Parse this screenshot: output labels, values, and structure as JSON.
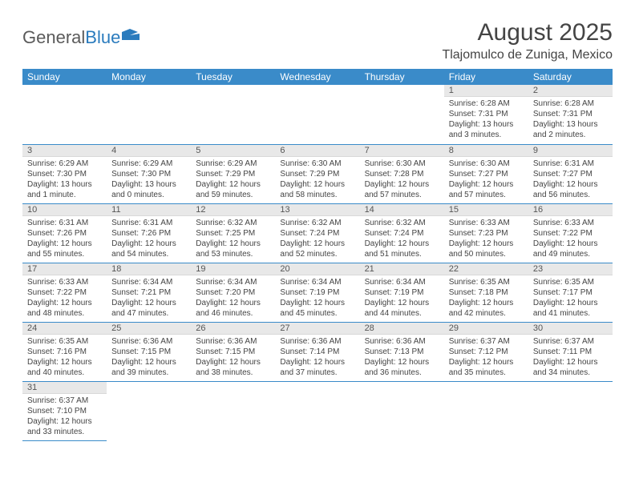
{
  "logo": {
    "text_gray": "General",
    "text_blue": "Blue"
  },
  "title": "August 2025",
  "location": "Tlajomulco de Zuniga, Mexico",
  "day_headers": [
    "Sunday",
    "Monday",
    "Tuesday",
    "Wednesday",
    "Thursday",
    "Friday",
    "Saturday"
  ],
  "colors": {
    "header_bg": "#3a8bc9",
    "header_text": "#ffffff",
    "daynum_bg": "#e8e8e8",
    "row_divider": "#3a8bc9",
    "text": "#444444",
    "logo_gray": "#5a5a5a",
    "logo_blue": "#2a7bbd"
  },
  "weeks": [
    [
      null,
      null,
      null,
      null,
      null,
      {
        "n": "1",
        "sunrise": "6:28 AM",
        "sunset": "7:31 PM",
        "daylight": "13 hours and 3 minutes."
      },
      {
        "n": "2",
        "sunrise": "6:28 AM",
        "sunset": "7:31 PM",
        "daylight": "13 hours and 2 minutes."
      }
    ],
    [
      {
        "n": "3",
        "sunrise": "6:29 AM",
        "sunset": "7:30 PM",
        "daylight": "13 hours and 1 minute."
      },
      {
        "n": "4",
        "sunrise": "6:29 AM",
        "sunset": "7:30 PM",
        "daylight": "13 hours and 0 minutes."
      },
      {
        "n": "5",
        "sunrise": "6:29 AM",
        "sunset": "7:29 PM",
        "daylight": "12 hours and 59 minutes."
      },
      {
        "n": "6",
        "sunrise": "6:30 AM",
        "sunset": "7:29 PM",
        "daylight": "12 hours and 58 minutes."
      },
      {
        "n": "7",
        "sunrise": "6:30 AM",
        "sunset": "7:28 PM",
        "daylight": "12 hours and 57 minutes."
      },
      {
        "n": "8",
        "sunrise": "6:30 AM",
        "sunset": "7:27 PM",
        "daylight": "12 hours and 57 minutes."
      },
      {
        "n": "9",
        "sunrise": "6:31 AM",
        "sunset": "7:27 PM",
        "daylight": "12 hours and 56 minutes."
      }
    ],
    [
      {
        "n": "10",
        "sunrise": "6:31 AM",
        "sunset": "7:26 PM",
        "daylight": "12 hours and 55 minutes."
      },
      {
        "n": "11",
        "sunrise": "6:31 AM",
        "sunset": "7:26 PM",
        "daylight": "12 hours and 54 minutes."
      },
      {
        "n": "12",
        "sunrise": "6:32 AM",
        "sunset": "7:25 PM",
        "daylight": "12 hours and 53 minutes."
      },
      {
        "n": "13",
        "sunrise": "6:32 AM",
        "sunset": "7:24 PM",
        "daylight": "12 hours and 52 minutes."
      },
      {
        "n": "14",
        "sunrise": "6:32 AM",
        "sunset": "7:24 PM",
        "daylight": "12 hours and 51 minutes."
      },
      {
        "n": "15",
        "sunrise": "6:33 AM",
        "sunset": "7:23 PM",
        "daylight": "12 hours and 50 minutes."
      },
      {
        "n": "16",
        "sunrise": "6:33 AM",
        "sunset": "7:22 PM",
        "daylight": "12 hours and 49 minutes."
      }
    ],
    [
      {
        "n": "17",
        "sunrise": "6:33 AM",
        "sunset": "7:22 PM",
        "daylight": "12 hours and 48 minutes."
      },
      {
        "n": "18",
        "sunrise": "6:34 AM",
        "sunset": "7:21 PM",
        "daylight": "12 hours and 47 minutes."
      },
      {
        "n": "19",
        "sunrise": "6:34 AM",
        "sunset": "7:20 PM",
        "daylight": "12 hours and 46 minutes."
      },
      {
        "n": "20",
        "sunrise": "6:34 AM",
        "sunset": "7:19 PM",
        "daylight": "12 hours and 45 minutes."
      },
      {
        "n": "21",
        "sunrise": "6:34 AM",
        "sunset": "7:19 PM",
        "daylight": "12 hours and 44 minutes."
      },
      {
        "n": "22",
        "sunrise": "6:35 AM",
        "sunset": "7:18 PM",
        "daylight": "12 hours and 42 minutes."
      },
      {
        "n": "23",
        "sunrise": "6:35 AM",
        "sunset": "7:17 PM",
        "daylight": "12 hours and 41 minutes."
      }
    ],
    [
      {
        "n": "24",
        "sunrise": "6:35 AM",
        "sunset": "7:16 PM",
        "daylight": "12 hours and 40 minutes."
      },
      {
        "n": "25",
        "sunrise": "6:36 AM",
        "sunset": "7:15 PM",
        "daylight": "12 hours and 39 minutes."
      },
      {
        "n": "26",
        "sunrise": "6:36 AM",
        "sunset": "7:15 PM",
        "daylight": "12 hours and 38 minutes."
      },
      {
        "n": "27",
        "sunrise": "6:36 AM",
        "sunset": "7:14 PM",
        "daylight": "12 hours and 37 minutes."
      },
      {
        "n": "28",
        "sunrise": "6:36 AM",
        "sunset": "7:13 PM",
        "daylight": "12 hours and 36 minutes."
      },
      {
        "n": "29",
        "sunrise": "6:37 AM",
        "sunset": "7:12 PM",
        "daylight": "12 hours and 35 minutes."
      },
      {
        "n": "30",
        "sunrise": "6:37 AM",
        "sunset": "7:11 PM",
        "daylight": "12 hours and 34 minutes."
      }
    ],
    [
      {
        "n": "31",
        "sunrise": "6:37 AM",
        "sunset": "7:10 PM",
        "daylight": "12 hours and 33 minutes."
      },
      null,
      null,
      null,
      null,
      null,
      null
    ]
  ],
  "labels": {
    "sunrise": "Sunrise: ",
    "sunset": "Sunset: ",
    "daylight": "Daylight: "
  }
}
